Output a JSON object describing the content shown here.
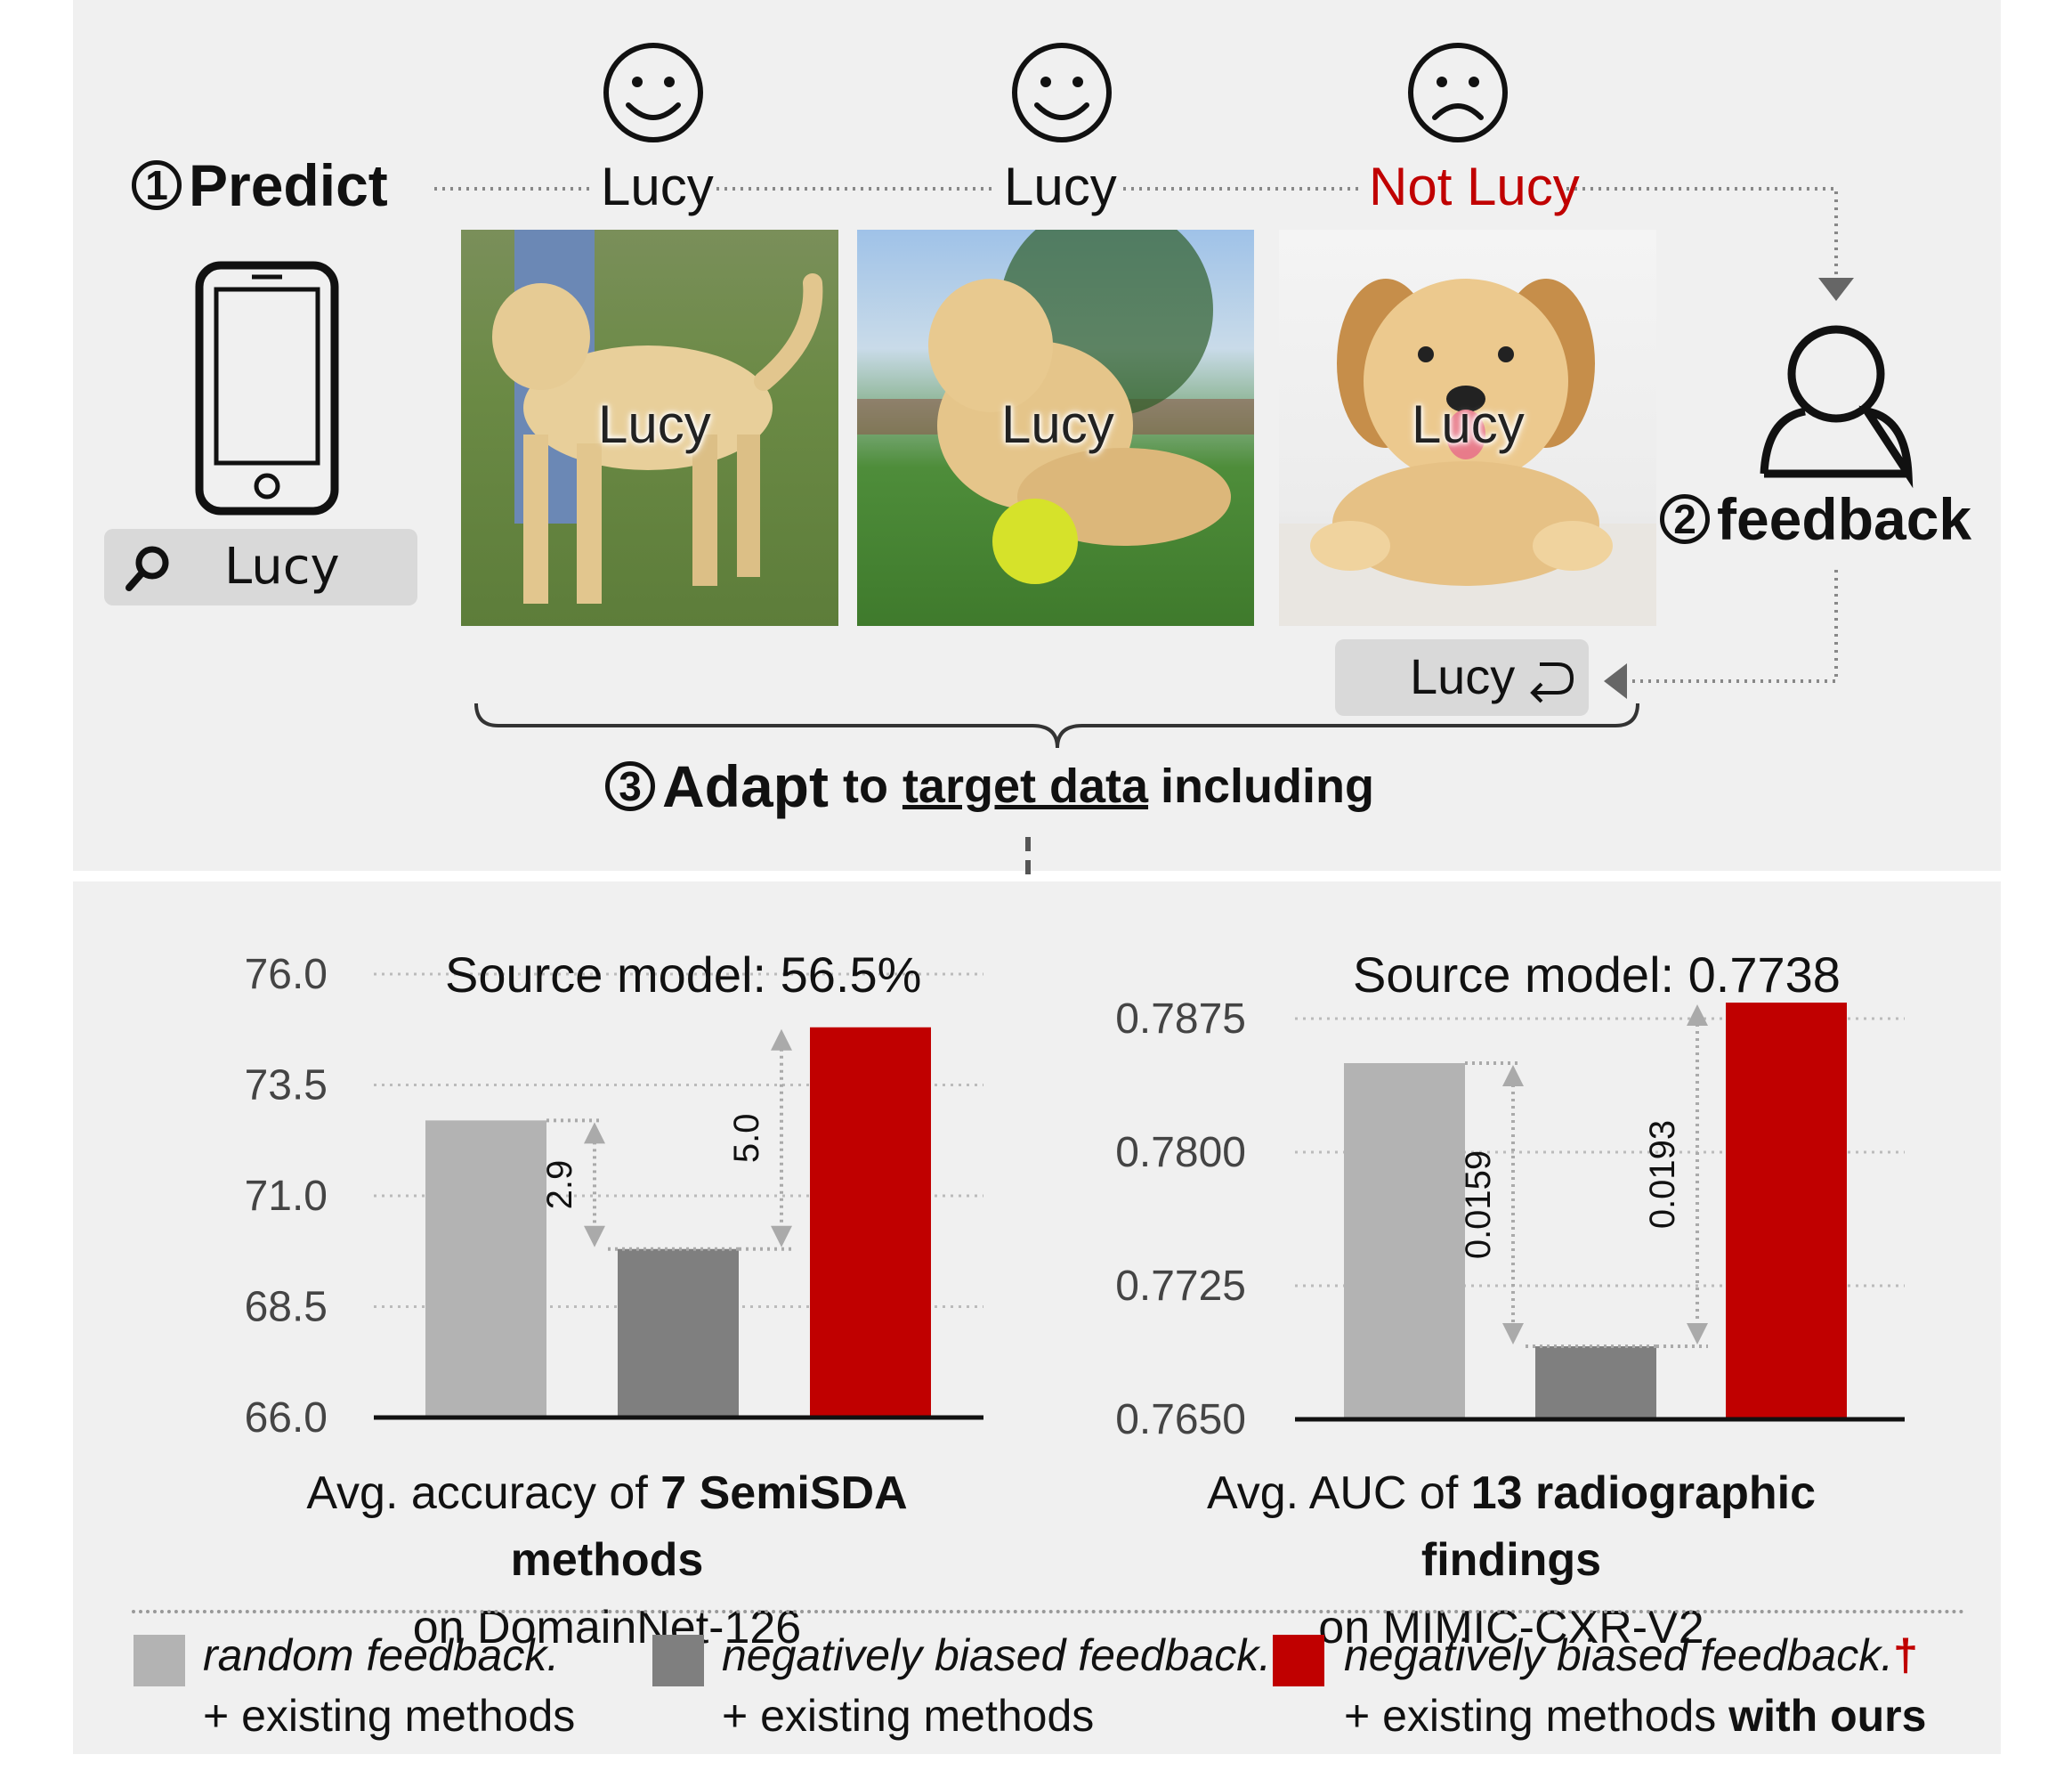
{
  "predict": {
    "number": "1",
    "label": "Predict"
  },
  "feedback": {
    "number": "2",
    "label": "feedback"
  },
  "adapt": {
    "number": "3",
    "label_bold": "Adapt",
    "to": "to",
    "target": "target data",
    "including": "including"
  },
  "search": {
    "query": "Lucy"
  },
  "predictions": [
    {
      "label": "Lucy",
      "sentiment": "happy",
      "color": "#111111",
      "image_label": "Lucy"
    },
    {
      "label": "Lucy",
      "sentiment": "happy",
      "color": "#111111",
      "image_label": "Lucy"
    },
    {
      "label": "Not Lucy",
      "sentiment": "sad",
      "color": "#c00000",
      "image_label": "Lucy"
    }
  ],
  "relabel": {
    "text": "Lucy"
  },
  "colors": {
    "random": "#b3b3b3",
    "biased": "#7f7f7f",
    "ours": "#c00000",
    "panel": "#f0f0f0"
  },
  "chart_data": [
    {
      "type": "bar",
      "title": "Source model: 56.5%",
      "yticks": [
        "76.0",
        "73.5",
        "71.0",
        "68.5",
        "66.0"
      ],
      "ylim": [
        66.0,
        76.0
      ],
      "series": [
        {
          "name": "random feedback.",
          "values": [
            72.7
          ]
        },
        {
          "name": "negatively biased feedback.",
          "values": [
            69.8
          ]
        },
        {
          "name": "negatively biased feedback.",
          "values": [
            74.8
          ]
        }
      ],
      "differences": [
        "2.9",
        "5.0"
      ],
      "caption": {
        "prefix": "Avg. accuracy of",
        "bold": "7 SemiSDA methods",
        "line2": "on DomainNet-126"
      }
    },
    {
      "type": "bar",
      "title": "Source model: 0.7738",
      "yticks": [
        "0.7875",
        "0.7800",
        "0.7725",
        "0.7650"
      ],
      "ylim": [
        0.765,
        0.7875
      ],
      "series": [
        {
          "name": "random feedback.",
          "values": [
            0.785
          ]
        },
        {
          "name": "negatively biased feedback.",
          "values": [
            0.7691
          ]
        },
        {
          "name": "negatively biased feedback.",
          "values": [
            0.7884
          ]
        }
      ],
      "differences": [
        "0.0159",
        "0.0193"
      ],
      "caption": {
        "prefix": "Avg. AUC of",
        "bold": "13 radiographic findings",
        "line2": "on MIMIC-CXR-V2"
      }
    }
  ],
  "legend": [
    {
      "line1": "random feedback.",
      "line2": "+ existing methods",
      "line2_bold": "",
      "dagger": ""
    },
    {
      "line1": "negatively biased feedback.",
      "line2": "+ existing methods",
      "line2_bold": "",
      "dagger": ""
    },
    {
      "line1": "negatively biased feedback.",
      "line2": "+ existing methods",
      "line2_bold": "with ours",
      "dagger": "†"
    }
  ]
}
